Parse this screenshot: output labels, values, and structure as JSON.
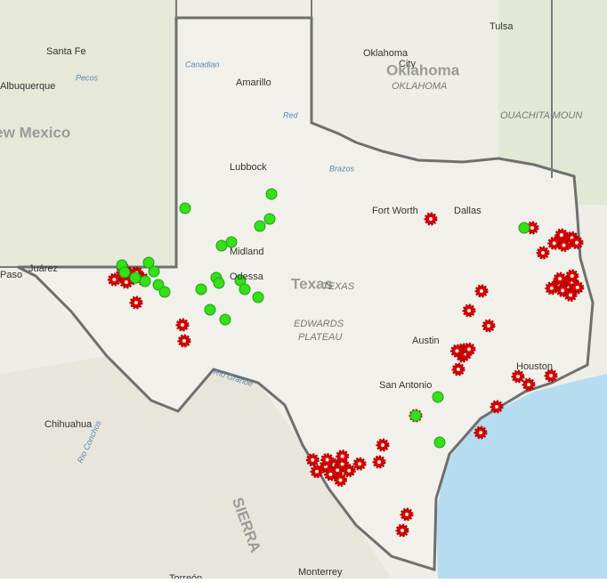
{
  "places": [
    {
      "label": "Santa Fe"
    },
    {
      "label": "Albuquerque"
    },
    {
      "label": "New Mexico"
    },
    {
      "label": "Tulsa"
    },
    {
      "label": "Oklahoma"
    },
    {
      "label": "City"
    },
    {
      "label": "Oklahoma"
    },
    {
      "label": "OKLAHOMA"
    },
    {
      "label": "OUACHITA MOUN"
    },
    {
      "label": "Amarillo"
    },
    {
      "label": "Canadian"
    },
    {
      "label": "Pecos"
    },
    {
      "label": "Red"
    },
    {
      "label": "Brazos"
    },
    {
      "label": "Lubbock"
    },
    {
      "label": "Fort Worth"
    },
    {
      "label": "Dallas"
    },
    {
      "label": "Midland"
    },
    {
      "label": "Odessa"
    },
    {
      "label": "Texas"
    },
    {
      "label": "TEXAS"
    },
    {
      "label": "EDWARDS"
    },
    {
      "label": "PLATEAU"
    },
    {
      "label": "Austin"
    },
    {
      "label": "San Antonio"
    },
    {
      "label": "Houston"
    },
    {
      "label": "Rio Grande"
    },
    {
      "label": "Juárez"
    },
    {
      "label": "Paso"
    },
    {
      "label": "Chihuahua"
    },
    {
      "label": "Rio Conchos"
    },
    {
      "label": "SIERRA"
    },
    {
      "label": "Monterrey"
    },
    {
      "label": "Torreón"
    }
  ]
}
